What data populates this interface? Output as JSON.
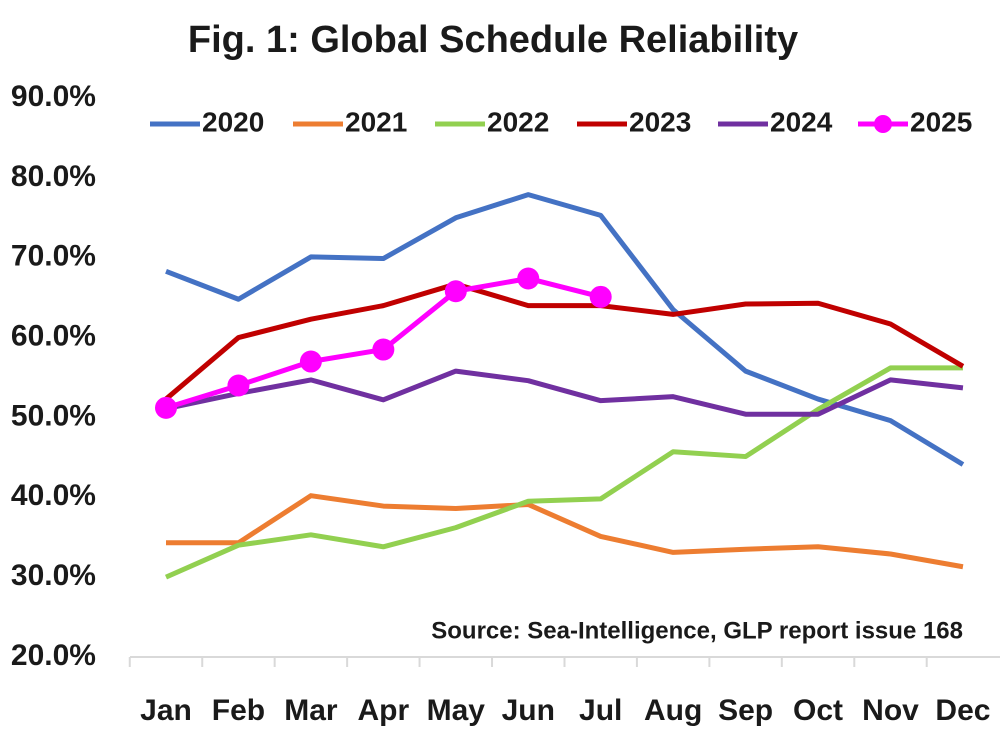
{
  "chart_data": {
    "type": "line",
    "title": "Fig. 1: Global Schedule Reliability",
    "annotation": "Source: Sea-Intelligence, GLP report issue 168",
    "categories": [
      "Jan",
      "Feb",
      "Mar",
      "Apr",
      "May",
      "Jun",
      "Jul",
      "Aug",
      "Sep",
      "Oct",
      "Nov",
      "Dec"
    ],
    "series": [
      {
        "name": "2020",
        "color": "#4472c4",
        "values": [
          68.3,
          64.8,
          70.1,
          69.9,
          75.0,
          77.9,
          75.3,
          63.5,
          55.8,
          52.3,
          49.6,
          44.1
        ]
      },
      {
        "name": "2021",
        "color": "#ed7d31",
        "values": [
          34.3,
          34.3,
          40.2,
          38.9,
          38.6,
          39.1,
          35.1,
          33.1,
          33.5,
          33.8,
          32.9,
          31.3
        ]
      },
      {
        "name": "2022",
        "color": "#92d050",
        "values": [
          30.0,
          34.0,
          35.3,
          33.8,
          36.2,
          39.5,
          39.8,
          45.7,
          45.1,
          51.0,
          56.2,
          56.2
        ]
      },
      {
        "name": "2023",
        "color": "#c00000",
        "values": [
          52.3,
          60.0,
          62.3,
          64.0,
          66.7,
          64.0,
          64.0,
          62.9,
          64.2,
          64.3,
          61.7,
          56.4
        ]
      },
      {
        "name": "2024",
        "color": "#7030a0",
        "values": [
          51.1,
          53.0,
          54.7,
          52.2,
          55.8,
          54.6,
          52.1,
          52.6,
          50.4,
          50.4,
          54.7,
          53.7
        ]
      },
      {
        "name": "2025",
        "color": "#ff00ff",
        "marker": true,
        "values": [
          51.2,
          54.0,
          57.0,
          58.5,
          65.8,
          67.4,
          65.1,
          null,
          null,
          null,
          null,
          null
        ]
      }
    ],
    "ylim": [
      20,
      90
    ],
    "yticks": [
      {
        "value": 20,
        "label": "20.0%"
      },
      {
        "value": 30,
        "label": "30.0%"
      },
      {
        "value": 40,
        "label": "40.0%"
      },
      {
        "value": 50,
        "label": "50.0%"
      },
      {
        "value": 60,
        "label": "60.0%"
      },
      {
        "value": 70,
        "label": "70.0%"
      },
      {
        "value": 80,
        "label": "80.0%"
      },
      {
        "value": 90,
        "label": "90.0%"
      }
    ],
    "grid": false,
    "legend": "top"
  }
}
